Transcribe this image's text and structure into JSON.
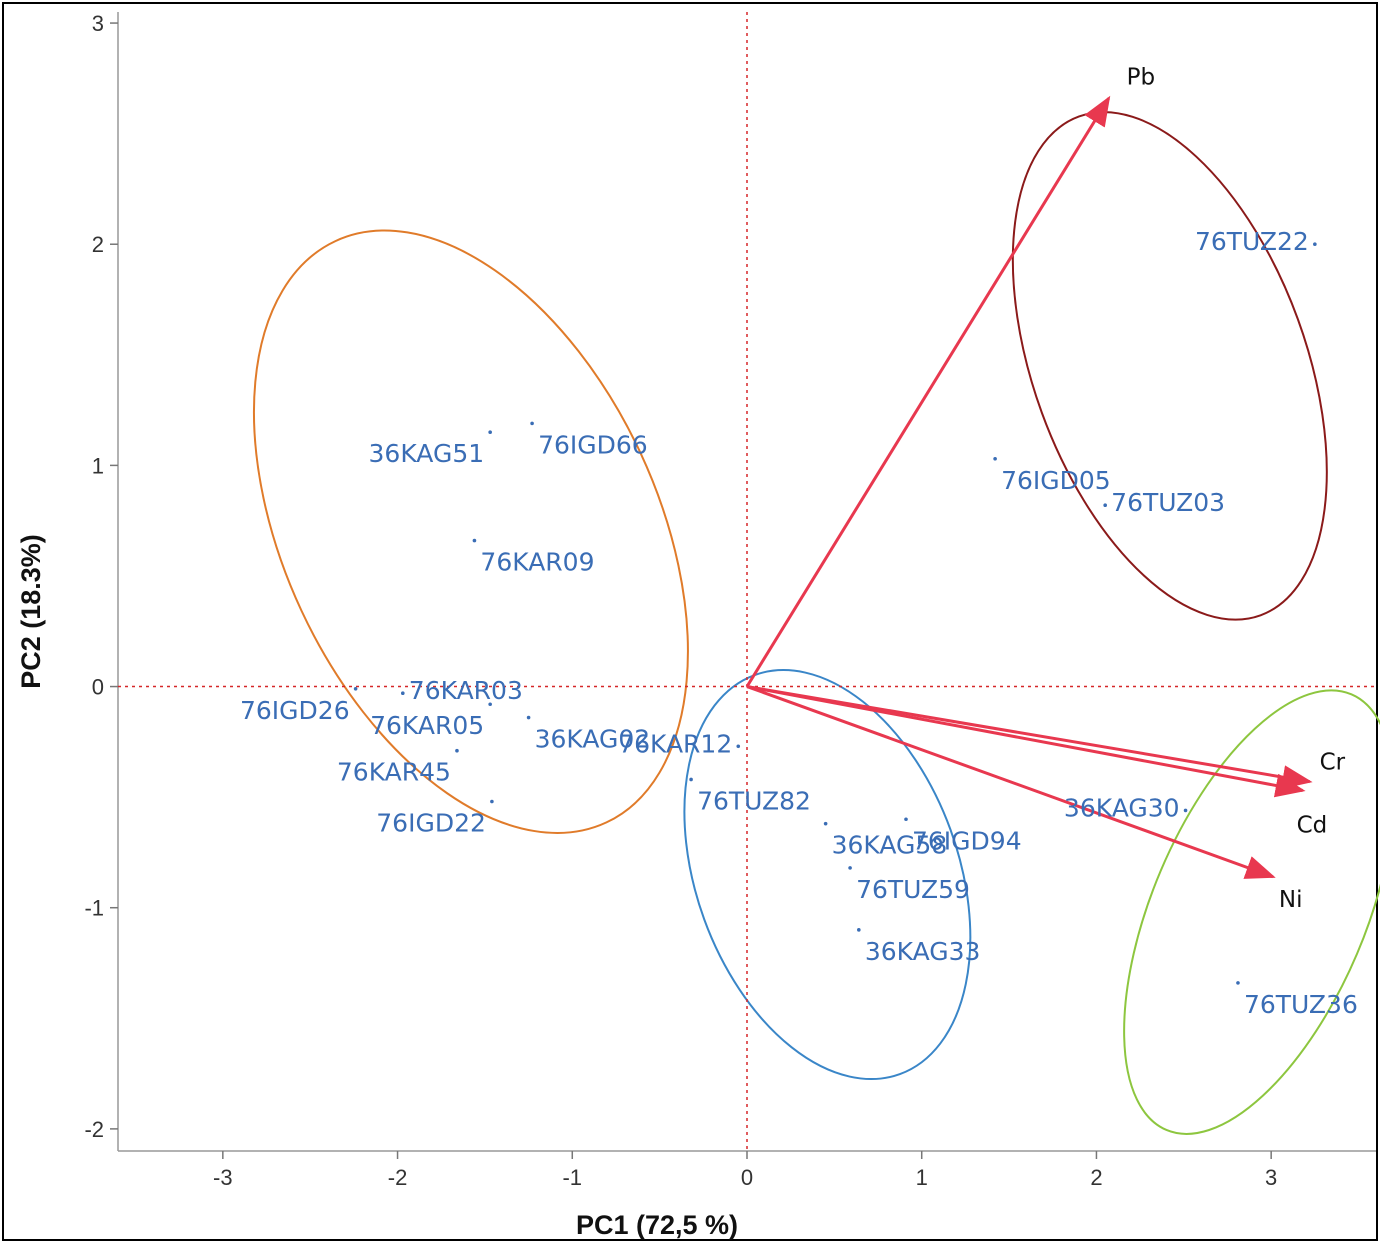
{
  "chart_data": {
    "type": "scatter",
    "subtype": "pca-biplot",
    "xlabel": "PC1  (72,5 %)",
    "ylabel": "PC2 (18.3%)",
    "xlim": [
      -3.6,
      3.6
    ],
    "ylim": [
      -2.1,
      3.05
    ],
    "xticks": [
      {
        "v": -3,
        "label": "-3"
      },
      {
        "v": -2,
        "label": "-2"
      },
      {
        "v": -1,
        "label": "-1"
      },
      {
        "v": 0,
        "label": "0"
      },
      {
        "v": 1,
        "label": "1"
      },
      {
        "v": 2,
        "label": "2"
      },
      {
        "v": 3,
        "label": "3"
      }
    ],
    "yticks": [
      {
        "v": -2,
        "label": "-2"
      },
      {
        "v": -1,
        "label": "-1"
      },
      {
        "v": 0,
        "label": "0"
      },
      {
        "v": 1,
        "label": "1"
      },
      {
        "v": 2,
        "label": "2"
      },
      {
        "v": 3,
        "label": "3"
      }
    ],
    "reference_lines": {
      "x": 0,
      "y": 0,
      "color": "#d62728",
      "style": "dotted"
    },
    "points": [
      {
        "name": "36KAG51",
        "x": -1.47,
        "y": 1.15,
        "label_side": "left",
        "label_below": true
      },
      {
        "name": "76IGD66",
        "x": -1.23,
        "y": 1.19,
        "label_side": "right",
        "label_below": true
      },
      {
        "name": "76KAR09",
        "x": -1.56,
        "y": 0.66,
        "label_side": "right",
        "label_below": true
      },
      {
        "name": "76KAR03",
        "x": -1.97,
        "y": -0.03,
        "label_side": "right",
        "label_below": false
      },
      {
        "name": "76IGD26",
        "x": -2.24,
        "y": -0.01,
        "label_side": "left",
        "label_below": true
      },
      {
        "name": "76KAR05",
        "x": -1.47,
        "y": -0.08,
        "label_side": "left",
        "label_below": true
      },
      {
        "name": "36KAG02",
        "x": -1.25,
        "y": -0.14,
        "label_side": "right",
        "label_below": true
      },
      {
        "name": "76KAR45",
        "x": -1.66,
        "y": -0.29,
        "label_side": "left",
        "label_below": true
      },
      {
        "name": "76IGD22",
        "x": -1.46,
        "y": -0.52,
        "label_side": "left",
        "label_below": true
      },
      {
        "name": "76KAR12",
        "x": -0.05,
        "y": -0.27,
        "label_side": "left",
        "label_below": false
      },
      {
        "name": "76TUZ82",
        "x": -0.32,
        "y": -0.42,
        "label_side": "right",
        "label_below": true
      },
      {
        "name": "36KAG58",
        "x": 0.45,
        "y": -0.62,
        "label_side": "right",
        "label_below": true
      },
      {
        "name": "76IGD94",
        "x": 0.91,
        "y": -0.6,
        "label_side": "right",
        "label_below": true
      },
      {
        "name": "76TUZ59",
        "x": 0.59,
        "y": -0.82,
        "label_side": "right",
        "label_below": true
      },
      {
        "name": "36KAG33",
        "x": 0.64,
        "y": -1.1,
        "label_side": "right",
        "label_below": true
      },
      {
        "name": "76TUZ22",
        "x": 3.25,
        "y": 2.0,
        "label_side": "left",
        "label_below": false
      },
      {
        "name": "76IGD05",
        "x": 1.42,
        "y": 1.03,
        "label_side": "right",
        "label_below": true
      },
      {
        "name": "76TUZ03",
        "x": 2.05,
        "y": 0.82,
        "label_side": "right",
        "label_below": false
      },
      {
        "name": "36KAG30",
        "x": 2.51,
        "y": -0.56,
        "label_side": "left",
        "label_below": false
      },
      {
        "name": "76TUZ36",
        "x": 2.81,
        "y": -1.34,
        "label_side": "right",
        "label_below": true
      }
    ],
    "vectors": [
      {
        "name": "Pb",
        "x": 2.07,
        "y": 2.66
      },
      {
        "name": "Cr",
        "x": 3.22,
        "y": -0.43
      },
      {
        "name": "Cd",
        "x": 3.18,
        "y": -0.47
      },
      {
        "name": "Ni",
        "x": 3.01,
        "y": -0.86
      }
    ],
    "vector_color": "#e8384f",
    "ellipses": [
      {
        "cx": -1.58,
        "cy": 0.7,
        "rx": 1.07,
        "ry": 1.45,
        "rotation_deg": -25,
        "color": "#e07b2a"
      },
      {
        "cx": 0.46,
        "cy": -0.85,
        "rx": 0.75,
        "ry": 0.96,
        "rotation_deg": -20,
        "color": "#3a86c8"
      },
      {
        "cx": 2.42,
        "cy": 1.45,
        "rx": 0.78,
        "ry": 1.2,
        "rotation_deg": -20,
        "color": "#8b1a1a"
      },
      {
        "cx": 2.93,
        "cy": -1.02,
        "rx": 0.61,
        "ry": 1.07,
        "rotation_deg": 23,
        "color": "#8dc63f"
      }
    ]
  }
}
